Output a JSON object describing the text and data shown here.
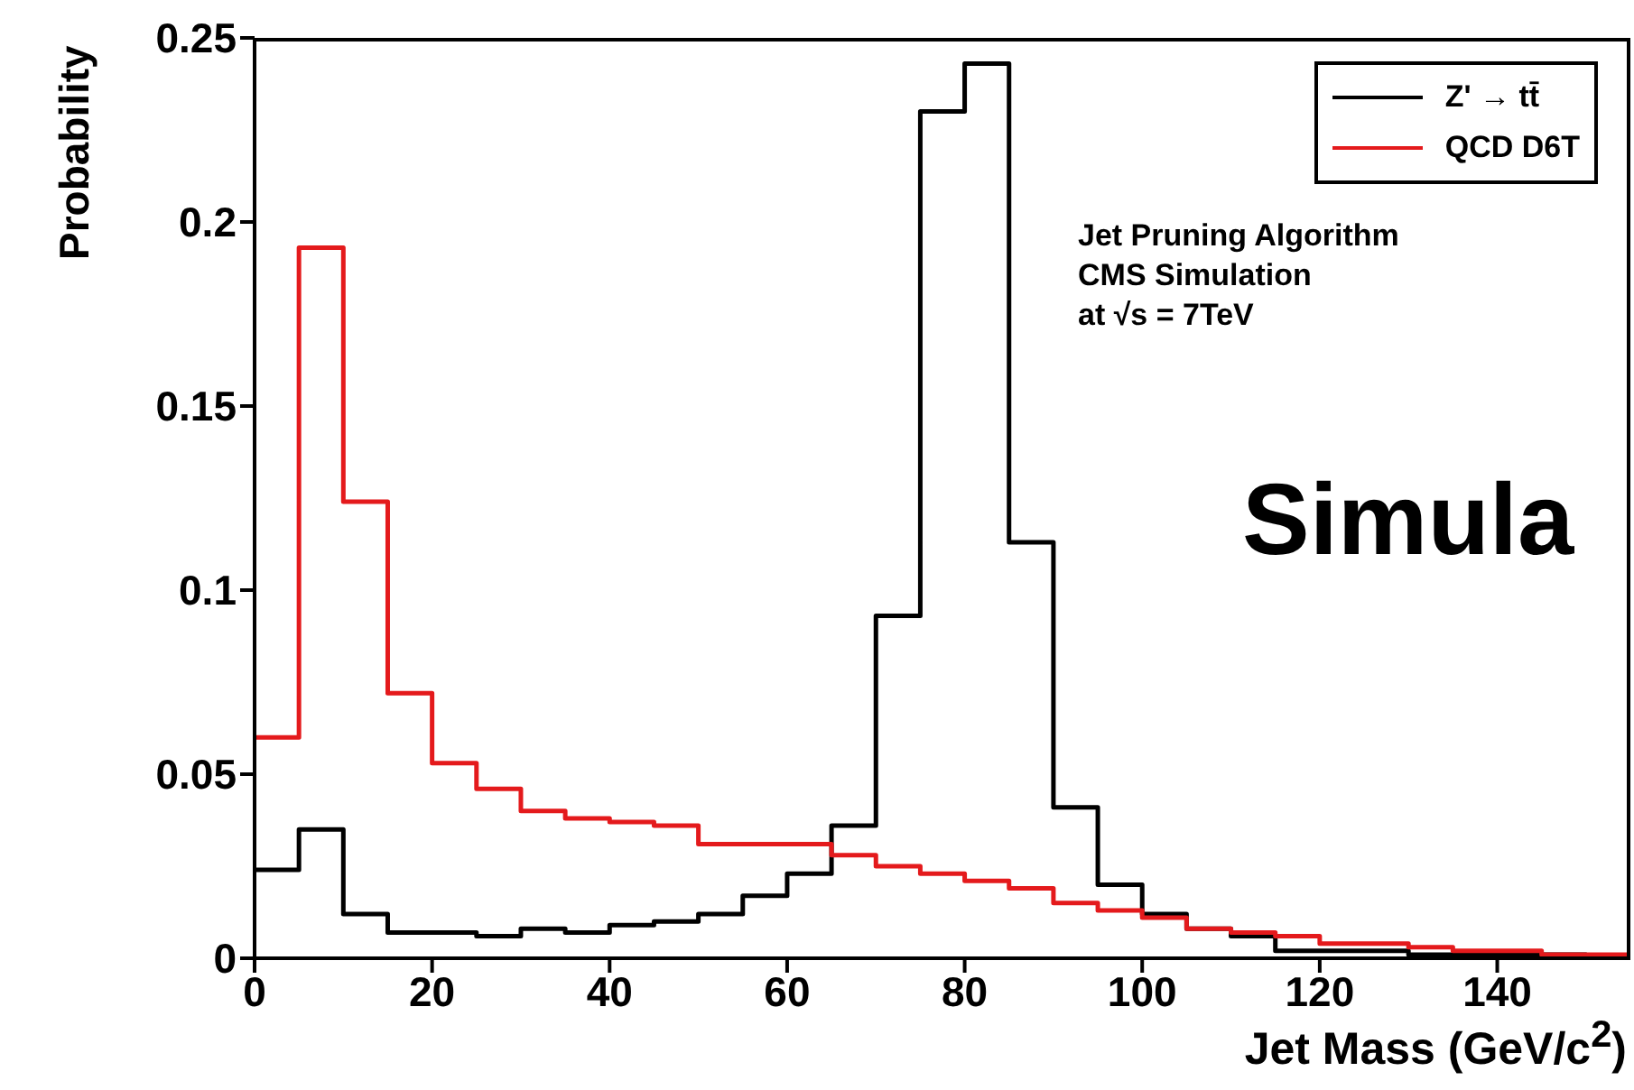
{
  "chart_data": {
    "type": "histogram",
    "xlabel": "Jet Mass (GeV/c$^{2}$)",
    "ylabel": "Probability",
    "bins": [
      0,
      5,
      10,
      15,
      20,
      25,
      30,
      35,
      40,
      45,
      50,
      55,
      60,
      65,
      70,
      75,
      80,
      85,
      90,
      95,
      100,
      105,
      110,
      115,
      120,
      125,
      130,
      135,
      140,
      145,
      150,
      155
    ],
    "series": [
      {
        "name": "Z' → tt̄",
        "color": "#000000",
        "values": [
          0.024,
          0.035,
          0.012,
          0.007,
          0.007,
          0.006,
          0.008,
          0.007,
          0.009,
          0.01,
          0.012,
          0.017,
          0.023,
          0.036,
          0.093,
          0.23,
          0.243,
          0.113,
          0.041,
          0.02,
          0.012,
          0.008,
          0.006,
          0.002,
          0.002,
          0.002,
          0.001,
          0.001,
          0.001,
          0.001,
          0.0
        ]
      },
      {
        "name": "QCD D6T",
        "color": "#e41a1c",
        "values": [
          0.06,
          0.193,
          0.124,
          0.072,
          0.053,
          0.046,
          0.04,
          0.038,
          0.037,
          0.036,
          0.031,
          0.031,
          0.031,
          0.028,
          0.025,
          0.023,
          0.021,
          0.019,
          0.015,
          0.013,
          0.011,
          0.008,
          0.007,
          0.006,
          0.004,
          0.004,
          0.003,
          0.002,
          0.002,
          0.001,
          0.001
        ]
      }
    ],
    "xlim": [
      0,
      155
    ],
    "xticks": [
      0,
      20,
      40,
      60,
      80,
      100,
      120,
      140
    ],
    "ylim": [
      0,
      0.25
    ],
    "yticks": [
      0,
      0.05,
      0.1,
      0.15,
      0.2,
      0.25
    ],
    "legend": "top right",
    "grid": false,
    "line_style": "solid",
    "marker": "none",
    "annotations": [
      "Jet Pruning Algorithm",
      "CMS Simulation",
      "at √s = 7TeV",
      "Simula"
    ]
  }
}
